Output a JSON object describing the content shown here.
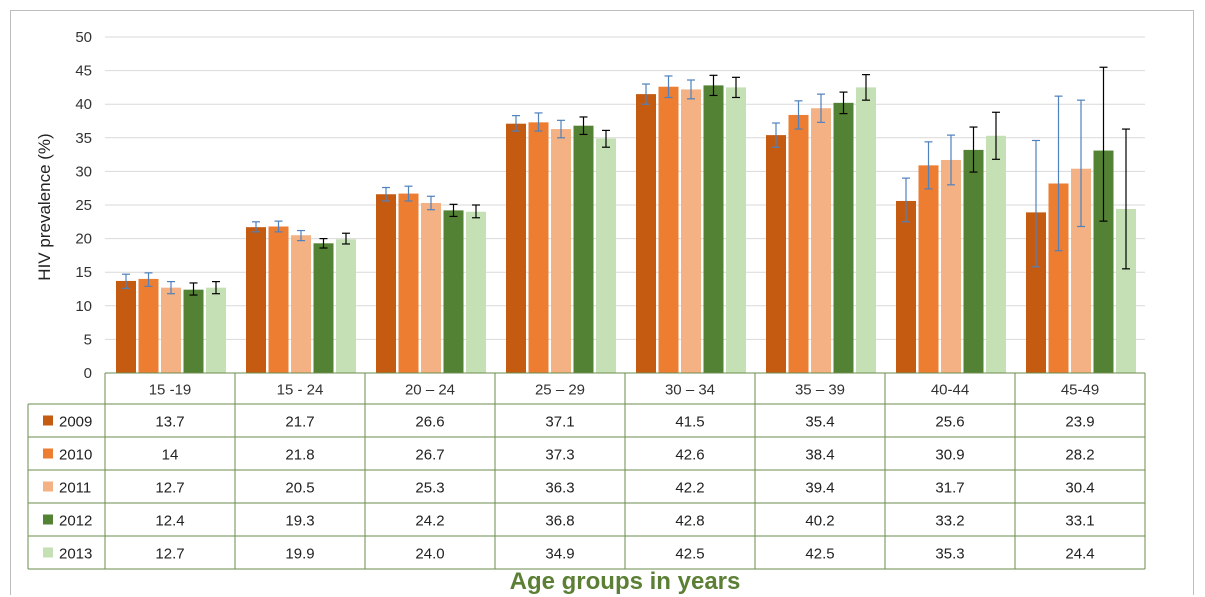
{
  "chart_data": {
    "type": "bar",
    "ylabel": "HIV prevalence  (%)",
    "xlabel": "Age groups in years",
    "ylim": [
      0,
      50
    ],
    "yticks": [
      "0",
      "5",
      "10",
      "15",
      "20",
      "25",
      "30",
      "35",
      "40",
      "45",
      "50"
    ],
    "grid": true,
    "legend_placement": "data-table-left",
    "categories": [
      "15 -19",
      "15 - 24",
      "20 – 24",
      "25 – 29",
      "30 – 34",
      "35 – 39",
      "40-44",
      "45-49"
    ],
    "series": [
      {
        "name": "2009",
        "color": "#c55a11",
        "error_color": "#4f81bd",
        "values": [
          13.7,
          21.7,
          26.6,
          37.1,
          41.5,
          35.4,
          25.6,
          23.9
        ],
        "labels": [
          "13.7",
          "21.7",
          "26.6",
          "37.1",
          "41.5",
          "35.4",
          "25.6",
          "23.9"
        ],
        "error_low": [
          12.6,
          21.0,
          25.6,
          36.0,
          40.0,
          33.6,
          22.5,
          15.8
        ],
        "error_high": [
          14.7,
          22.5,
          27.6,
          38.3,
          43.0,
          37.2,
          29.0,
          34.6
        ]
      },
      {
        "name": "2010",
        "color": "#ed7d31",
        "error_color": "#4f81bd",
        "values": [
          14,
          21.8,
          26.7,
          37.3,
          42.6,
          38.4,
          30.9,
          28.2
        ],
        "labels": [
          "14",
          "21.8",
          "26.7",
          "37.3",
          "42.6",
          "38.4",
          "30.9",
          "28.2"
        ],
        "error_low": [
          12.9,
          21.0,
          25.6,
          36.0,
          41.0,
          36.3,
          27.4,
          18.2
        ],
        "error_high": [
          14.9,
          22.6,
          27.8,
          38.7,
          44.2,
          40.5,
          34.4,
          41.2
        ]
      },
      {
        "name": "2011",
        "color": "#f4b183",
        "error_color": "#4f81bd",
        "values": [
          12.7,
          20.5,
          25.3,
          36.3,
          42.2,
          39.4,
          31.7,
          30.4
        ],
        "labels": [
          "12.7",
          "20.5",
          "25.3",
          "36.3",
          "42.2",
          "39.4",
          "31.7",
          "30.4"
        ],
        "error_low": [
          11.8,
          19.7,
          24.3,
          35.0,
          40.8,
          37.3,
          28.0,
          21.8
        ],
        "error_high": [
          13.6,
          21.2,
          26.3,
          37.6,
          43.6,
          41.5,
          35.4,
          40.6
        ]
      },
      {
        "name": "2012",
        "color": "#548235",
        "error_color": "#000000",
        "values": [
          12.4,
          19.3,
          24.2,
          36.8,
          42.8,
          40.2,
          33.2,
          33.1
        ],
        "labels": [
          "12.4",
          "19.3",
          "24.2",
          "36.8",
          "42.8",
          "40.2",
          "33.2",
          "33.1"
        ],
        "error_low": [
          11.6,
          18.6,
          23.3,
          35.5,
          41.3,
          38.6,
          29.9,
          22.6
        ],
        "error_high": [
          13.4,
          20.0,
          25.1,
          38.1,
          44.3,
          41.8,
          36.6,
          45.5
        ]
      },
      {
        "name": "2013",
        "color": "#c5e0b4",
        "error_color": "#000000",
        "values": [
          12.7,
          19.9,
          24.0,
          34.9,
          42.5,
          42.5,
          35.3,
          24.4
        ],
        "labels": [
          "12.7",
          "19.9",
          "24.0",
          "34.9",
          "42.5",
          "42.5",
          "35.3",
          "24.4"
        ],
        "error_low": [
          11.8,
          19.2,
          23.1,
          33.6,
          41.0,
          40.6,
          31.8,
          15.5
        ],
        "error_high": [
          13.6,
          20.8,
          25.0,
          36.1,
          44.0,
          44.4,
          38.8,
          36.3
        ]
      }
    ]
  }
}
